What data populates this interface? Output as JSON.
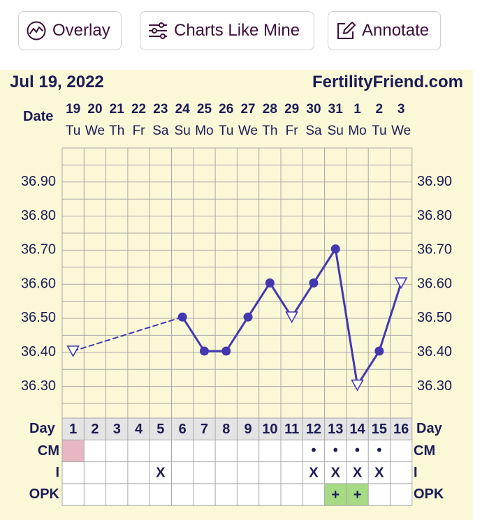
{
  "toolbar": {
    "overlay_label": "Overlay",
    "charts_like_mine_label": "Charts Like Mine",
    "annotate_label": "Annotate"
  },
  "header": {
    "date": "Jul 19, 2022",
    "brand": "FertilityFriend.com"
  },
  "colors": {
    "panel_bg": "#fbf8d8",
    "line": "#4438b0",
    "grid": "#a8a8a8",
    "text": "#1b1b55",
    "menstruation_cell": "#e9b7c4",
    "positive_opk_cell": "#a6db84",
    "day_row_bg": "#e4e4e4"
  },
  "chart_data": {
    "type": "line",
    "date_row_label": "Date",
    "dates": [
      "19",
      "20",
      "21",
      "22",
      "23",
      "24",
      "25",
      "26",
      "27",
      "28",
      "29",
      "30",
      "31",
      "1",
      "2",
      "3"
    ],
    "weekdays": [
      "Tu",
      "We",
      "Th",
      "Fr",
      "Sa",
      "Su",
      "Mo",
      "Tu",
      "We",
      "Th",
      "Fr",
      "Sa",
      "Su",
      "Mo",
      "Tu",
      "We"
    ],
    "y_ticks": [
      "36.90",
      "36.80",
      "36.70",
      "36.60",
      "36.50",
      "36.40",
      "36.30"
    ],
    "ylim": [
      36.2,
      37.0
    ],
    "days": [
      1,
      2,
      3,
      4,
      5,
      6,
      7,
      8,
      9,
      10,
      11,
      12,
      13,
      14,
      15,
      16
    ],
    "temperatures": [
      {
        "day": 1,
        "value": 36.4,
        "marker": "open-triangle"
      },
      {
        "day": 6,
        "value": 36.5,
        "marker": "filled-circle"
      },
      {
        "day": 7,
        "value": 36.4,
        "marker": "filled-circle"
      },
      {
        "day": 8,
        "value": 36.4,
        "marker": "filled-circle"
      },
      {
        "day": 9,
        "value": 36.5,
        "marker": "filled-circle"
      },
      {
        "day": 10,
        "value": 36.6,
        "marker": "filled-circle"
      },
      {
        "day": 11,
        "value": 36.5,
        "marker": "open-triangle"
      },
      {
        "day": 12,
        "value": 36.6,
        "marker": "filled-circle"
      },
      {
        "day": 13,
        "value": 36.7,
        "marker": "filled-circle"
      },
      {
        "day": 14,
        "value": 36.3,
        "marker": "open-triangle"
      },
      {
        "day": 15,
        "value": 36.4,
        "marker": "filled-circle"
      },
      {
        "day": 16,
        "value": 36.6,
        "marker": "open-triangle"
      }
    ],
    "dashed_segment_days": [
      1,
      6
    ],
    "grid": true,
    "rows": {
      "day_label": "Day",
      "cm_label": "CM",
      "i_label": "I",
      "opk_label": "OPK",
      "menstruation_days": [
        1
      ],
      "cm_days": [
        12,
        13,
        14,
        15
      ],
      "cm_mark": "•",
      "intercourse_days": [
        5,
        12,
        13,
        14,
        15
      ],
      "intercourse_mark": "X",
      "opk_positive_days": [
        13,
        14
      ],
      "opk_mark": "+"
    }
  }
}
